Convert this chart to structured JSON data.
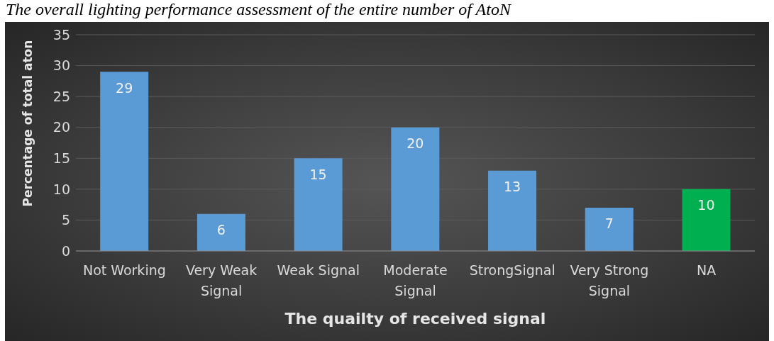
{
  "chart_data": {
    "type": "bar",
    "annotations": [
      "The overall lighting performance assessment of the entire number of AtoN"
    ],
    "xlabel": "The quailty of received signal",
    "ylabel": "Percentage of total aton",
    "categories": [
      "Not Working",
      "Very Weak Signal",
      "Weak Signal",
      "Moderate Signal",
      "StrongSignal",
      "Very Strong Signal",
      "NA"
    ],
    "values": [
      29,
      6,
      15,
      20,
      13,
      7,
      10
    ],
    "colors": [
      "#5b9bd5",
      "#5b9bd5",
      "#5b9bd5",
      "#5b9bd5",
      "#5b9bd5",
      "#5b9bd5",
      "#00b050"
    ],
    "ylim": [
      0,
      35
    ],
    "yticks": [
      0,
      5,
      10,
      15,
      20,
      25,
      30,
      35
    ],
    "grid": "y",
    "data_labels": true
  }
}
